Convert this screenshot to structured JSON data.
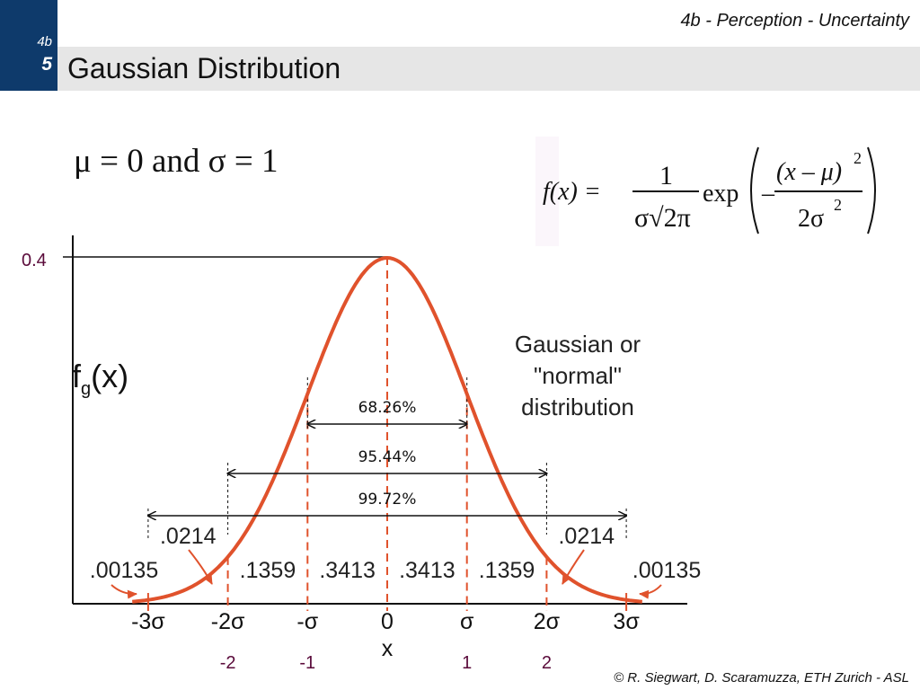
{
  "header": {
    "section": "4b - Perception - Uncertainty",
    "badge_top": "4b",
    "badge_number": "5",
    "title": "Gaussian Distribution"
  },
  "footer": {
    "copyright": "© R. Siegwart, D. Scaramuzza, ETH Zurich - ASL"
  },
  "params": {
    "text": "μ = 0 and σ = 1"
  },
  "formula": {
    "lhs": "f(x) =",
    "numerator": "1",
    "denominator": "σ√2π",
    "exp": "exp",
    "minus": "–",
    "inner_numerator": "(x – μ)",
    "inner_exponent": "2",
    "inner_denominator": "2σ",
    "inner_den_exponent": "2"
  },
  "colors": {
    "curve": "#e0522c",
    "axis": "#111111",
    "navy": "#0e3a6b",
    "maroon": "#5a0a3a"
  },
  "chart_data": {
    "type": "area",
    "function": "normal pdf",
    "mu": 0,
    "sigma": 1,
    "xlim": [
      -3.2,
      3.2
    ],
    "ylim": [
      0,
      0.4
    ],
    "ylabel_main": "f",
    "ylabel_sub": "g",
    "ylabel_tail": "(x)",
    "xlabel": "x",
    "peak_label": "0.4",
    "peak_value": 0.4,
    "sigma_ticks": [
      {
        "x": -3,
        "label": "-3σ"
      },
      {
        "x": -2,
        "label": "-2σ"
      },
      {
        "x": -1,
        "label": "-σ"
      },
      {
        "x": 0,
        "label": "0"
      },
      {
        "x": 1,
        "label": "σ"
      },
      {
        "x": 2,
        "label": "2σ"
      },
      {
        "x": 3,
        "label": "3σ"
      }
    ],
    "numeric_ticks": [
      {
        "x": -2,
        "label": "-2"
      },
      {
        "x": -1,
        "label": "-1"
      },
      {
        "x": 1,
        "label": "1"
      },
      {
        "x": 2,
        "label": "2"
      }
    ],
    "areas": [
      {
        "x": -2.5,
        "label": ".0214"
      },
      {
        "x": -1.5,
        "label": ".1359"
      },
      {
        "x": -0.5,
        "label": ".3413"
      },
      {
        "x": 0.5,
        "label": ".3413"
      },
      {
        "x": 1.5,
        "label": ".1359"
      },
      {
        "x": 2.5,
        "label": ".0214"
      }
    ],
    "tails": [
      {
        "side": "left",
        "label": ".00135"
      },
      {
        "side": "right",
        "label": ".00135"
      }
    ],
    "intervals": [
      {
        "from": -1,
        "to": 1,
        "label": "68.26%"
      },
      {
        "from": -2,
        "to": 2,
        "label": "95.44%"
      },
      {
        "from": -3,
        "to": 3,
        "label": "99.72%"
      }
    ],
    "annotation": [
      "Gaussian or",
      "\"normal\"",
      "distribution"
    ]
  }
}
